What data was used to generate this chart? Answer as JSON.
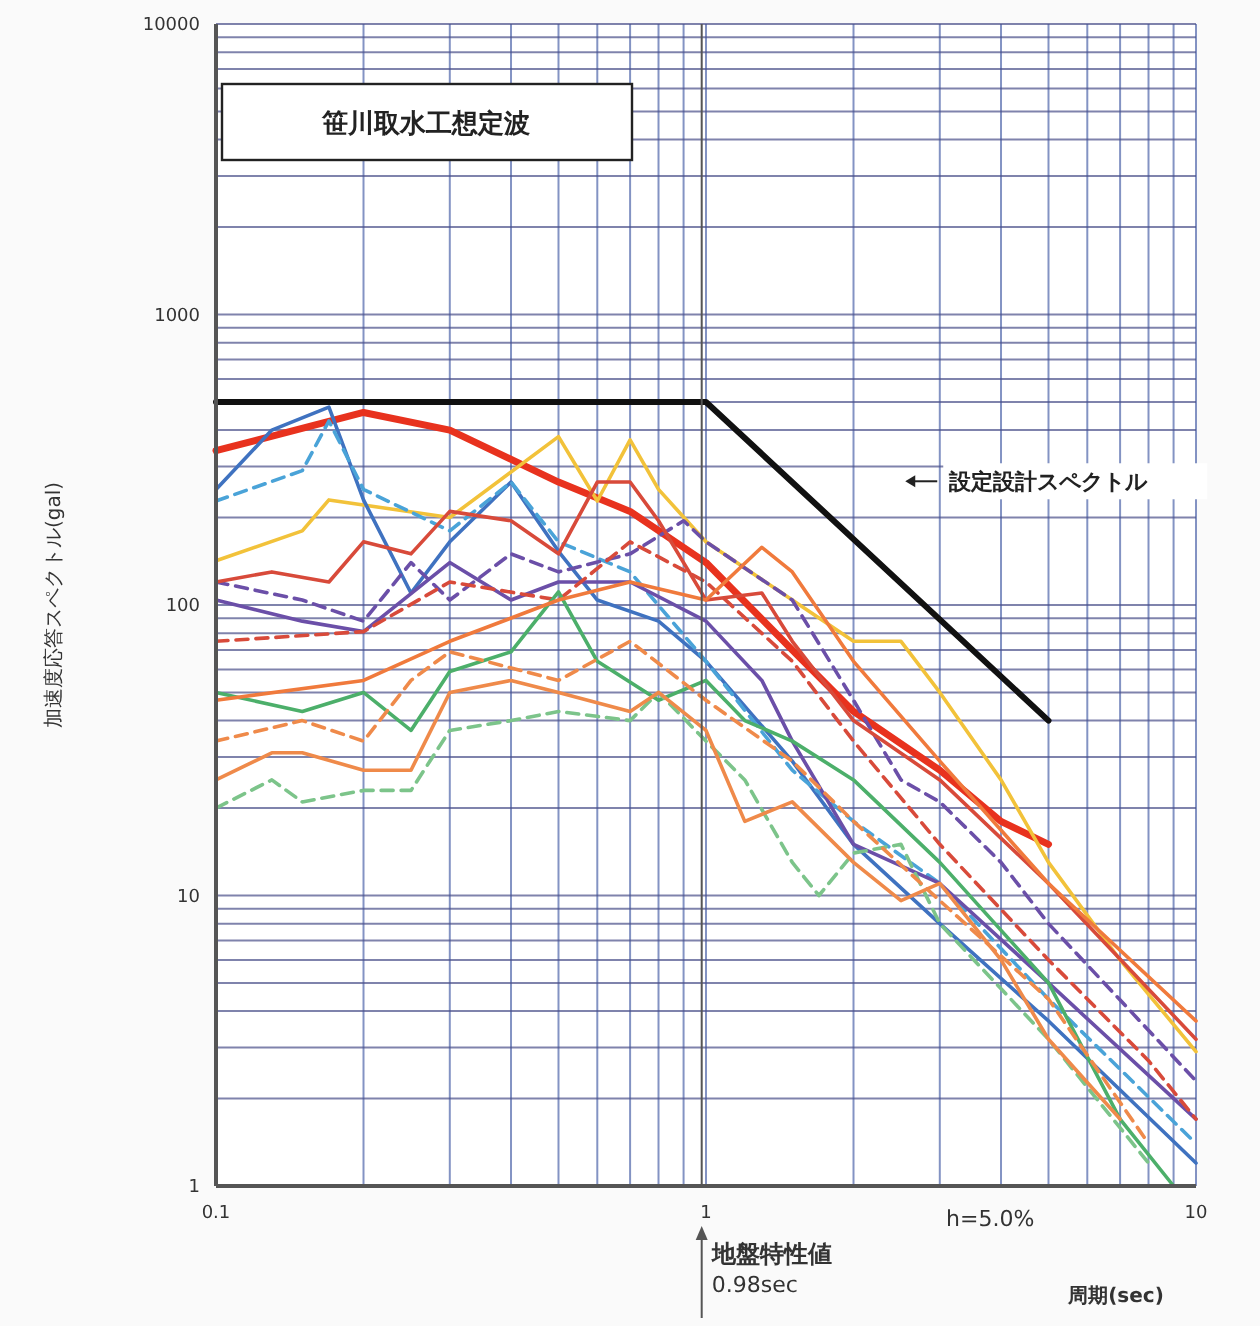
{
  "chart_data": {
    "type": "line",
    "title": "笹川取水工想定波",
    "xlabel": "周期(sec)",
    "ylabel": "加速度応答スペクトル(gal)",
    "log": "xy",
    "grid": true,
    "xlim": [
      0.1,
      10
    ],
    "ylim": [
      1,
      10000
    ],
    "xticks": [
      0.1,
      {
        "value": 0.2,
        "label": null
      },
      {
        "value": 0.3,
        "label": null
      },
      {
        "value": 0.4,
        "label": null
      },
      {
        "value": 0.5,
        "label": null
      },
      {
        "value": 0.6,
        "label": null
      },
      {
        "value": 0.7,
        "label": null
      },
      {
        "value": 0.8,
        "label": null
      },
      {
        "value": 0.9,
        "label": null
      },
      1,
      {
        "value": 2,
        "label": null
      },
      {
        "value": 3,
        "label": null
      },
      {
        "value": 4,
        "label": null
      },
      {
        "value": 5,
        "label": null
      },
      {
        "value": 6,
        "label": null
      },
      {
        "value": 7,
        "label": null
      },
      {
        "value": 8,
        "label": null
      },
      {
        "value": 9,
        "label": null
      },
      10
    ],
    "yticks": [
      1,
      {
        "value": 2,
        "label": null
      },
      {
        "value": 3,
        "label": null
      },
      {
        "value": 4,
        "label": null
      },
      {
        "value": 5,
        "label": null
      },
      {
        "value": 6,
        "label": null
      },
      {
        "value": 7,
        "label": null
      },
      {
        "value": 8,
        "label": null
      },
      {
        "value": 9,
        "label": null
      },
      10,
      {
        "value": 20,
        "label": null
      },
      {
        "value": 30,
        "label": null
      },
      {
        "value": 40,
        "label": null
      },
      {
        "value": 50,
        "label": null
      },
      {
        "value": 60,
        "label": null
      },
      {
        "value": 70,
        "label": null
      },
      {
        "value": 80,
        "label": null
      },
      {
        "value": 90,
        "label": null
      },
      100,
      {
        "value": 200,
        "label": null
      },
      {
        "value": 300,
        "label": null
      },
      {
        "value": 400,
        "label": null
      },
      {
        "value": 500,
        "label": null
      },
      {
        "value": 600,
        "label": null
      },
      {
        "value": 700,
        "label": null
      },
      {
        "value": 800,
        "label": null
      },
      {
        "value": 900,
        "label": null
      },
      1000,
      {
        "value": 2000,
        "label": null
      },
      {
        "value": 3000,
        "label": null
      },
      {
        "value": 4000,
        "label": null
      },
      {
        "value": 5000,
        "label": null
      },
      {
        "value": 6000,
        "label": null
      },
      {
        "value": 7000,
        "label": null
      },
      {
        "value": 8000,
        "label": null
      },
      {
        "value": 9000,
        "label": null
      },
      10000
    ],
    "annotations": [
      "h=5.0%"
    ],
    "ref_lines": [
      {
        "axis": "x",
        "value": 0.98,
        "label": "地盤特性値 0.98sec"
      }
    ],
    "series": [
      {
        "name": "設定設計スペクトル",
        "color": "#111111",
        "x": [
          0.1,
          1.0,
          5.0
        ],
        "values": [
          500,
          500,
          40
        ]
      },
      {
        "color": "#e8321e",
        "x": [
          0.1,
          0.2,
          0.3,
          0.5,
          0.7,
          1.0,
          1.5,
          2,
          3,
          4,
          5
        ],
        "values": [
          340,
          460,
          400,
          265,
          210,
          140,
          70,
          43,
          27,
          18,
          15
        ]
      },
      {
        "color": "#f2c23a",
        "x": [
          0.1,
          0.15,
          0.17,
          0.3,
          0.5,
          0.6,
          0.7,
          0.8,
          1.0,
          1.5,
          2,
          2.5,
          3,
          4,
          5,
          7,
          10
        ],
        "values": [
          142,
          180,
          230,
          200,
          380,
          228,
          370,
          250,
          165,
          104,
          75,
          75,
          50,
          25,
          13,
          6,
          2.9
        ]
      },
      {
        "color": "#3f72c0",
        "x": [
          0.1,
          0.13,
          0.17,
          0.2,
          0.25,
          0.3,
          0.4,
          0.5,
          0.6,
          0.8,
          1.0,
          1.5,
          2,
          3,
          5,
          10
        ],
        "values": [
          250,
          400,
          480,
          230,
          110,
          165,
          265,
          153,
          104,
          88,
          64,
          29,
          15,
          8,
          3.7,
          1.2
        ]
      },
      {
        "color": "#4aa3d8",
        "line_style": "dashed",
        "x": [
          0.1,
          0.15,
          0.17,
          0.2,
          0.3,
          0.4,
          0.5,
          0.7,
          1.0,
          1.5,
          2,
          3,
          5,
          10
        ],
        "values": [
          228,
          290,
          430,
          250,
          180,
          265,
          165,
          130,
          64,
          27,
          18,
          11,
          4.4,
          1.4
        ]
      },
      {
        "color": "#6b4fa8",
        "x": [
          0.1,
          0.15,
          0.2,
          0.3,
          0.4,
          0.5,
          0.7,
          1.0,
          1.3,
          1.5,
          2,
          3,
          5,
          10
        ],
        "values": [
          104,
          88,
          81,
          140,
          104,
          120,
          120,
          88,
          55,
          34,
          15,
          11,
          5,
          1.7
        ]
      },
      {
        "color": "#6b4fa8",
        "line_style": "dashed",
        "x": [
          0.1,
          0.15,
          0.2,
          0.25,
          0.3,
          0.4,
          0.5,
          0.7,
          0.9,
          1.0,
          1.5,
          2,
          2.5,
          3,
          4,
          5,
          10
        ],
        "values": [
          120,
          104,
          88,
          140,
          104,
          150,
          130,
          150,
          195,
          165,
          104,
          47,
          25,
          21,
          13,
          8,
          2.3
        ]
      },
      {
        "color": "#d84a3a",
        "x": [
          0.1,
          0.13,
          0.17,
          0.2,
          0.25,
          0.3,
          0.4,
          0.5,
          0.6,
          0.7,
          0.8,
          1.0,
          1.3,
          1.5,
          2,
          3,
          5,
          10
        ],
        "values": [
          120,
          130,
          120,
          165,
          150,
          210,
          195,
          150,
          265,
          265,
          195,
          104,
          110,
          75,
          40,
          25,
          11,
          3.2
        ]
      },
      {
        "color": "#d84a3a",
        "line_style": "dashed",
        "x": [
          0.1,
          0.2,
          0.3,
          0.5,
          0.7,
          1.0,
          1.5,
          2,
          3,
          5,
          8,
          10
        ],
        "values": [
          75,
          81,
          120,
          104,
          165,
          120,
          64,
          34,
          15,
          6,
          2.7,
          1.7
        ]
      },
      {
        "color": "#4caf6a",
        "x": [
          0.1,
          0.15,
          0.2,
          0.25,
          0.3,
          0.4,
          0.5,
          0.6,
          0.8,
          1.0,
          1.2,
          1.5,
          2,
          3,
          5,
          7,
          9
        ],
        "values": [
          50,
          43,
          50,
          37,
          59,
          69,
          111,
          64,
          47,
          55,
          40,
          34,
          25,
          13,
          5,
          1.7,
          1
        ]
      },
      {
        "color": "#7cc48a",
        "line_style": "dashed",
        "x": [
          0.1,
          0.13,
          0.15,
          0.2,
          0.25,
          0.3,
          0.4,
          0.5,
          0.7,
          0.8,
          1.0,
          1.2,
          1.5,
          1.7,
          2,
          2.5,
          3,
          5,
          8
        ],
        "values": [
          20,
          25,
          21,
          23,
          23,
          37,
          40,
          43,
          40,
          50,
          34,
          25,
          13,
          10,
          14,
          15,
          8,
          3.2,
          1.2
        ]
      },
      {
        "color": "#ef8a4a",
        "x": [
          0.1,
          0.13,
          0.15,
          0.2,
          0.25,
          0.3,
          0.4,
          0.5,
          0.7,
          0.8,
          1.0,
          1.2,
          1.5,
          2,
          2.5,
          3,
          4,
          5,
          7
        ],
        "values": [
          25,
          31,
          31,
          27,
          27,
          50,
          55,
          50,
          43,
          50,
          37,
          18,
          21,
          13,
          9.6,
          11,
          6,
          3.2,
          1.7
        ]
      },
      {
        "color": "#ef8a4a",
        "line_style": "dashed",
        "x": [
          0.1,
          0.15,
          0.2,
          0.25,
          0.3,
          0.5,
          0.7,
          1.0,
          1.5,
          2,
          3,
          5,
          8
        ],
        "values": [
          34,
          40,
          34,
          55,
          69,
          55,
          75,
          47,
          29,
          18,
          9.6,
          4.4,
          1.4
        ]
      },
      {
        "color": "#f07a3c",
        "x": [
          0.1,
          0.2,
          0.3,
          0.5,
          0.7,
          1.0,
          1.3,
          1.5,
          2,
          3,
          5,
          10
        ],
        "values": [
          47,
          55,
          75,
          104,
          120,
          104,
          158,
          130,
          64,
          29,
          11,
          3.7
        ]
      }
    ]
  }
}
